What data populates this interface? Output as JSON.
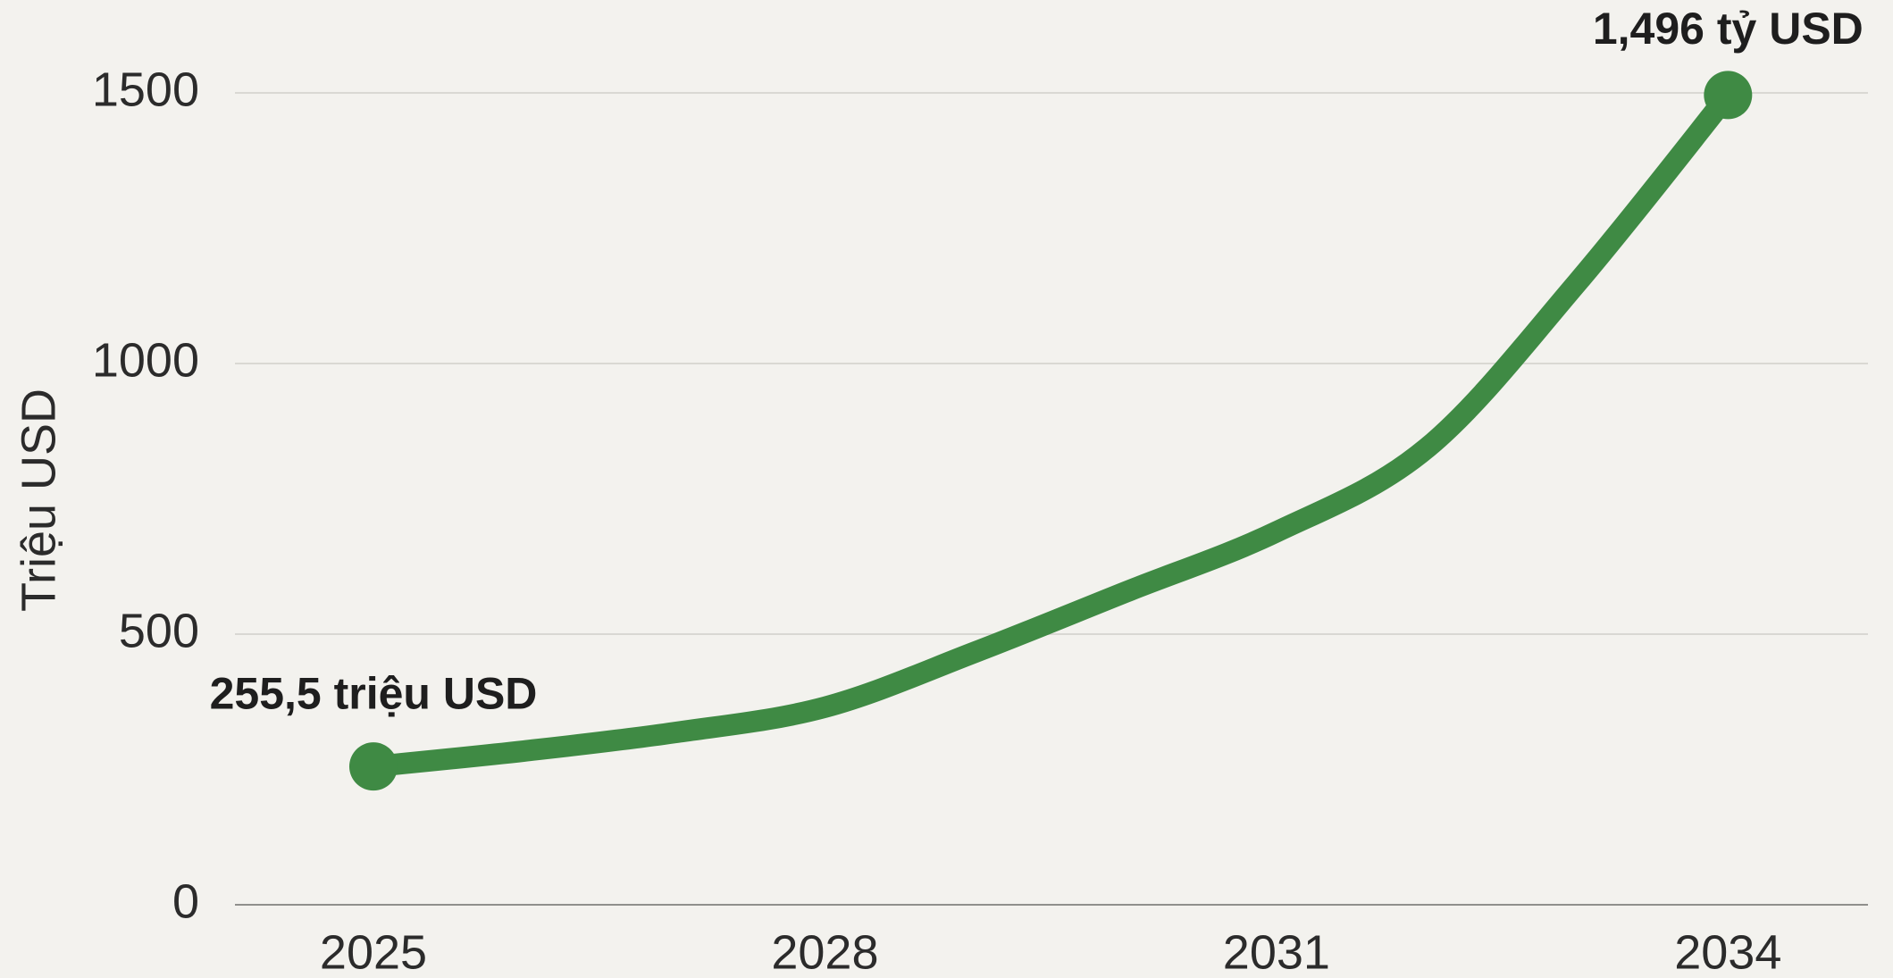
{
  "chart_data": {
    "type": "line",
    "y_label": "Triệu USD",
    "x": [
      2025,
      2026,
      2027,
      2028,
      2029,
      2030,
      2031,
      2032,
      2033,
      2034
    ],
    "series": [
      {
        "name": null,
        "color": "#3f8a44",
        "values": [
          255.5,
          284,
          318,
          365,
          467,
          578,
          689,
          844,
          1150,
          1496
        ],
        "value_labels": [
          "255,5 triệu USD",
          null,
          null,
          null,
          null,
          null,
          null,
          null,
          null,
          "1,496 tỷ USD"
        ]
      }
    ],
    "xlim": [
      2024.08,
      2034.93
    ],
    "xticks": [
      2025,
      2028,
      2031,
      2034
    ],
    "ylim": [
      0,
      1500
    ],
    "yticks": [
      0,
      500,
      1000,
      1500
    ],
    "grid": true
  }
}
